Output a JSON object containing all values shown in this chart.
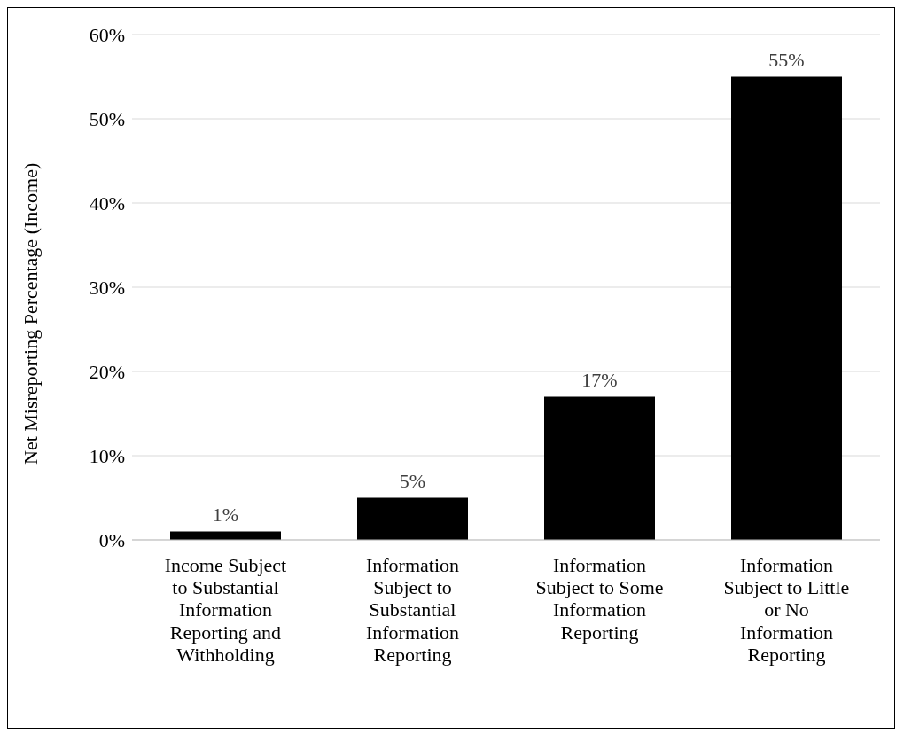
{
  "chart_data": {
    "type": "bar",
    "ylabel": "Net Misreporting Percentage (Income)",
    "categories": [
      "Income Subject to Substantial Information Reporting and Withholding",
      "Information Subject to Substantial Information Reporting",
      "Information Subject to Some Information Reporting",
      "Information Subject to Little or No Information Reporting"
    ],
    "values": [
      1,
      5,
      17,
      55
    ],
    "value_labels": [
      "1%",
      "5%",
      "17%",
      "55%"
    ],
    "color": "#000000",
    "ylim": [
      0,
      60
    ],
    "yticks": [
      {
        "value": 0,
        "label": "0%"
      },
      {
        "value": 10,
        "label": "10%"
      },
      {
        "value": 20,
        "label": "20%"
      },
      {
        "value": 30,
        "label": "30%"
      },
      {
        "value": 40,
        "label": "40%"
      },
      {
        "value": 50,
        "label": "50%"
      },
      {
        "value": 60,
        "label": "60%"
      }
    ],
    "grid": "y",
    "legend": false
  }
}
